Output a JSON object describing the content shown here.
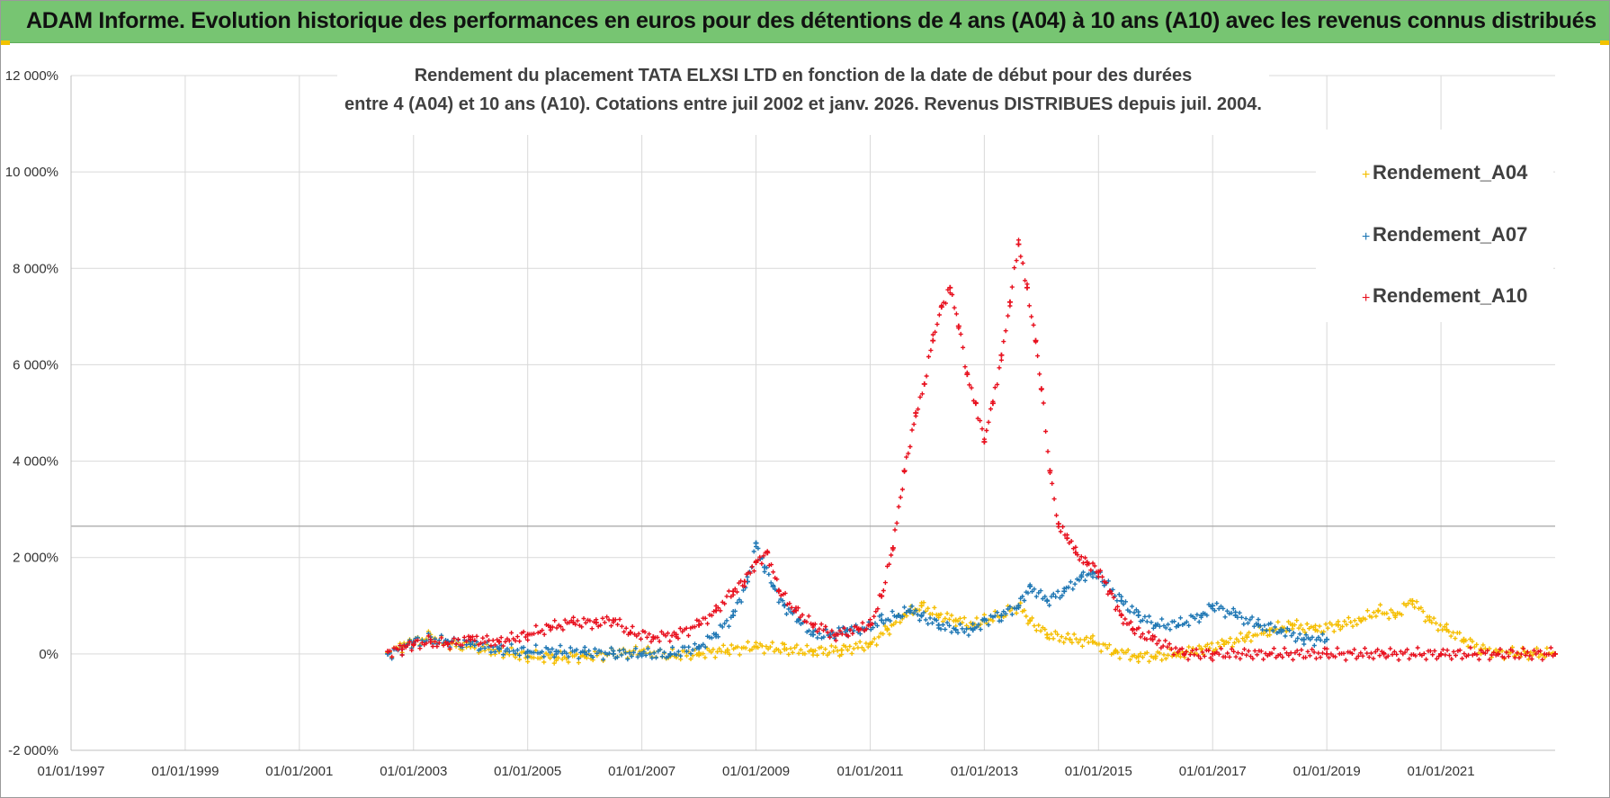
{
  "banner": {
    "title": "ADAM Informe. Evolution historique des performances en euros pour des détentions de 4 ans (A04) à 10 ans (A10) avec les revenus connus distribués"
  },
  "chart_data": {
    "type": "scatter",
    "title_lines": [
      "Rendement du placement TATA ELXSI LTD en fonction de la date de début pour des durées",
      "entre 4 (A04) et 10 ans (A10).  Cotations entre juil 2002 et janv. 2026. Revenus DISTRIBUES depuis juil. 2004."
    ],
    "xlabel": "",
    "ylabel": "",
    "xlim": [
      1997.0,
      2023.0
    ],
    "ylim": [
      -2000,
      12000
    ],
    "x_tick_values": [
      1997,
      1999,
      2001,
      2003,
      2005,
      2007,
      2009,
      2011,
      2013,
      2015,
      2017,
      2019,
      2021
    ],
    "x_tick_labels": [
      "01/01/1997",
      "01/01/1999",
      "01/01/2001",
      "01/01/2003",
      "01/01/2005",
      "01/01/2007",
      "01/01/2009",
      "01/01/2011",
      "01/01/2013",
      "01/01/2015",
      "01/01/2017",
      "01/01/2019",
      "01/01/2021"
    ],
    "y_tick_values": [
      -2000,
      0,
      2000,
      4000,
      6000,
      8000,
      10000,
      12000
    ],
    "y_tick_labels": [
      "-2 000%",
      "0%",
      "2 000%",
      "4 000%",
      "6 000%",
      "8 000%",
      "10 000%",
      "12 000%"
    ],
    "grid": true,
    "reference_line_y": 2650,
    "legend_position": "top-right",
    "marker": "+",
    "series": [
      {
        "name": "Rendement_A04",
        "color": "#f5be00",
        "x": [
          2002.55,
          2002.8,
          2003.0,
          2003.3,
          2003.6,
          2004.0,
          2004.5,
          2005.0,
          2005.5,
          2006.0,
          2006.5,
          2007.0,
          2007.5,
          2008.0,
          2008.5,
          2009.0,
          2009.5,
          2010.0,
          2010.5,
          2011.0,
          2011.3,
          2011.6,
          2011.9,
          2012.2,
          2012.5,
          2012.8,
          2013.0,
          2013.3,
          2013.6,
          2013.8,
          2014.1,
          2014.5,
          2014.9,
          2015.3,
          2015.7,
          2016.0,
          2016.4,
          2016.8,
          2017.2,
          2017.6,
          2018.0,
          2018.4,
          2018.8,
          2019.2,
          2019.6,
          2019.9,
          2020.2,
          2020.5,
          2020.8,
          2021.1,
          2021.4,
          2021.7,
          2022.0,
          2022.5,
          2023.0
        ],
        "y": [
          20,
          150,
          250,
          350,
          200,
          150,
          50,
          -50,
          -80,
          -50,
          0,
          50,
          -30,
          10,
          80,
          150,
          100,
          50,
          80,
          200,
          500,
          800,
          1000,
          800,
          700,
          600,
          700,
          800,
          1000,
          700,
          400,
          300,
          250,
          50,
          -50,
          -50,
          0,
          100,
          200,
          350,
          500,
          600,
          500,
          600,
          700,
          900,
          800,
          1100,
          700,
          500,
          300,
          100,
          30,
          10,
          0
        ]
      },
      {
        "name": "Rendement_A07",
        "color": "#1f77b4",
        "x": [
          2002.55,
          2002.8,
          2003.0,
          2003.3,
          2003.6,
          2004.0,
          2004.5,
          2005.0,
          2005.5,
          2006.0,
          2006.5,
          2007.0,
          2007.5,
          2008.0,
          2008.3,
          2008.6,
          2008.85,
          2009.0,
          2009.15,
          2009.3,
          2009.5,
          2009.75,
          2010.0,
          2010.3,
          2010.6,
          2010.9,
          2011.2,
          2011.5,
          2011.7,
          2011.9,
          2012.2,
          2012.5,
          2012.8,
          2013.0,
          2013.3,
          2013.6,
          2013.8,
          2014.1,
          2014.4,
          2014.7,
          2014.9,
          2015.1,
          2015.4,
          2015.7,
          2016.0,
          2016.4,
          2016.8,
          2017.0,
          2017.4,
          2017.8,
          2018.2,
          2018.6,
          2019.0
        ],
        "y": [
          0,
          100,
          250,
          300,
          250,
          200,
          100,
          50,
          50,
          30,
          0,
          0,
          0,
          150,
          400,
          800,
          1500,
          2300,
          1800,
          1400,
          1000,
          700,
          400,
          400,
          500,
          500,
          700,
          800,
          900,
          800,
          600,
          500,
          500,
          700,
          800,
          1000,
          1400,
          1100,
          1300,
          1600,
          1700,
          1500,
          1100,
          800,
          600,
          600,
          800,
          1000,
          800,
          600,
          500,
          300,
          300
        ]
      },
      {
        "name": "Rendement_A10",
        "color": "#e8101e",
        "x": [
          2002.55,
          2002.8,
          2003.0,
          2003.3,
          2003.6,
          2004.0,
          2004.5,
          2005.0,
          2005.4,
          2005.8,
          2006.2,
          2006.5,
          2006.8,
          2007.2,
          2007.6,
          2008.0,
          2008.3,
          2008.6,
          2008.8,
          2009.0,
          2009.2,
          2009.4,
          2009.7,
          2010.0,
          2010.4,
          2010.8,
          2011.0,
          2011.2,
          2011.4,
          2011.6,
          2011.8,
          2011.95,
          2012.1,
          2012.25,
          2012.4,
          2012.55,
          2012.7,
          2012.85,
          2013.0,
          2013.15,
          2013.3,
          2013.45,
          2013.6,
          2013.75,
          2013.9,
          2014.0,
          2014.15,
          2014.3,
          2014.45,
          2014.6,
          2014.8,
          2015.0,
          2015.2,
          2015.4,
          2015.6,
          2015.95,
          2016.5,
          2017.0,
          2018.0,
          2019.0,
          2020.0,
          2021.0,
          2022.0,
          2023.0
        ],
        "y": [
          50,
          100,
          200,
          250,
          200,
          300,
          250,
          400,
          550,
          650,
          650,
          700,
          450,
          350,
          400,
          600,
          900,
          1300,
          1500,
          1900,
          2100,
          1300,
          900,
          600,
          400,
          500,
          600,
          1200,
          2200,
          3800,
          5000,
          5600,
          6500,
          7200,
          7600,
          6800,
          5800,
          5200,
          4400,
          5200,
          6200,
          7300,
          8500,
          7600,
          6500,
          5500,
          3800,
          2700,
          2400,
          2100,
          1900,
          1700,
          1300,
          800,
          500,
          300,
          0,
          0,
          0,
          0,
          0,
          0,
          0,
          0
        ]
      }
    ]
  }
}
